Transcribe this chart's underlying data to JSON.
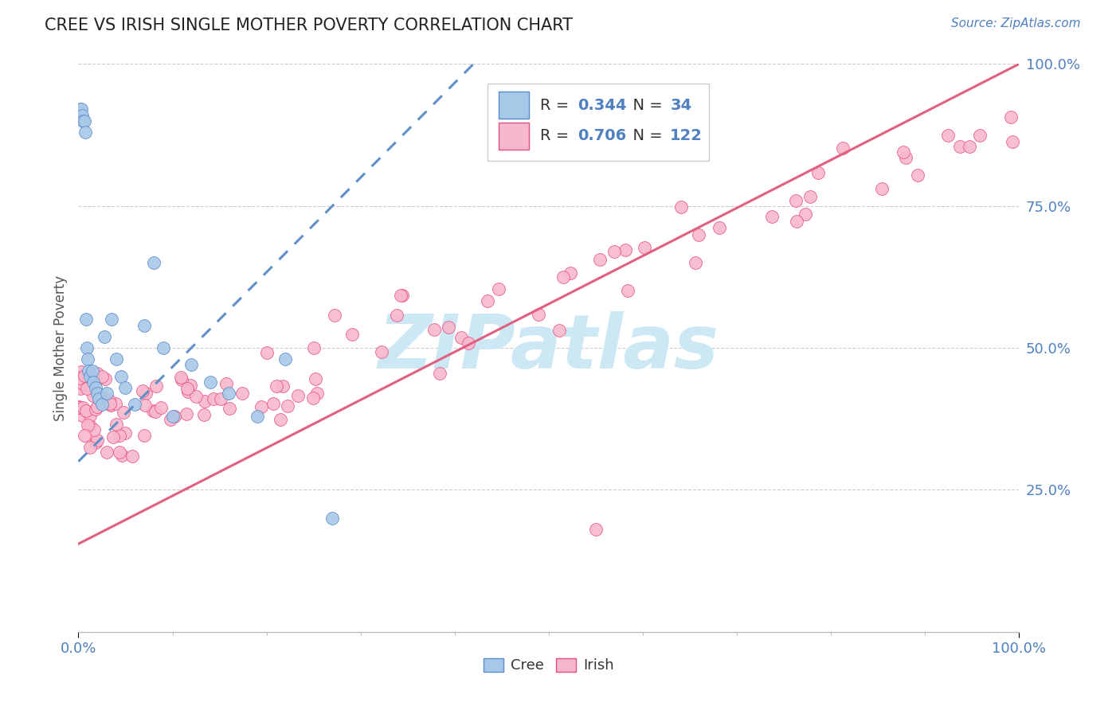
{
  "title": "CREE VS IRISH SINGLE MOTHER POVERTY CORRELATION CHART",
  "source": "Source: ZipAtlas.com",
  "ylabel": "Single Mother Poverty",
  "cree_R": 0.344,
  "cree_N": 34,
  "irish_R": 0.706,
  "irish_N": 122,
  "cree_color": "#a8c8e8",
  "irish_color": "#f8b8cc",
  "cree_edge_color": "#5888c8",
  "irish_edge_color": "#e85080",
  "cree_line_color": "#6090c8",
  "irish_line_color": "#e06080",
  "background": "#ffffff",
  "grid_color": "#cccccc",
  "axis_label_color": "#5080c0",
  "title_color": "#222222",
  "watermark_color": "#cce8f4",
  "ylabel_color": "#555555"
}
